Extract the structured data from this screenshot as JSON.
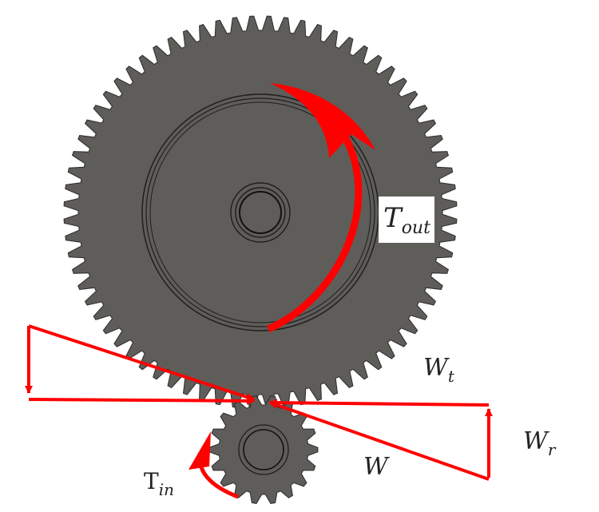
{
  "diagram": {
    "labels": {
      "t_out": {
        "main": "T",
        "sub": "out"
      },
      "w_t": {
        "main": "W",
        "sub": "t"
      },
      "w_r": {
        "main": "W",
        "sub": "r"
      },
      "w": {
        "main": "W"
      },
      "t_in": {
        "main": "T",
        "sub": "in"
      }
    },
    "gears": {
      "large_teeth": 72,
      "small_teeth": 18
    },
    "colors": {
      "gear_body": "#5f5d59",
      "gear_edge": "#2a2a2a",
      "arrow": "#ff0000",
      "label_box": "#ffffff"
    }
  }
}
